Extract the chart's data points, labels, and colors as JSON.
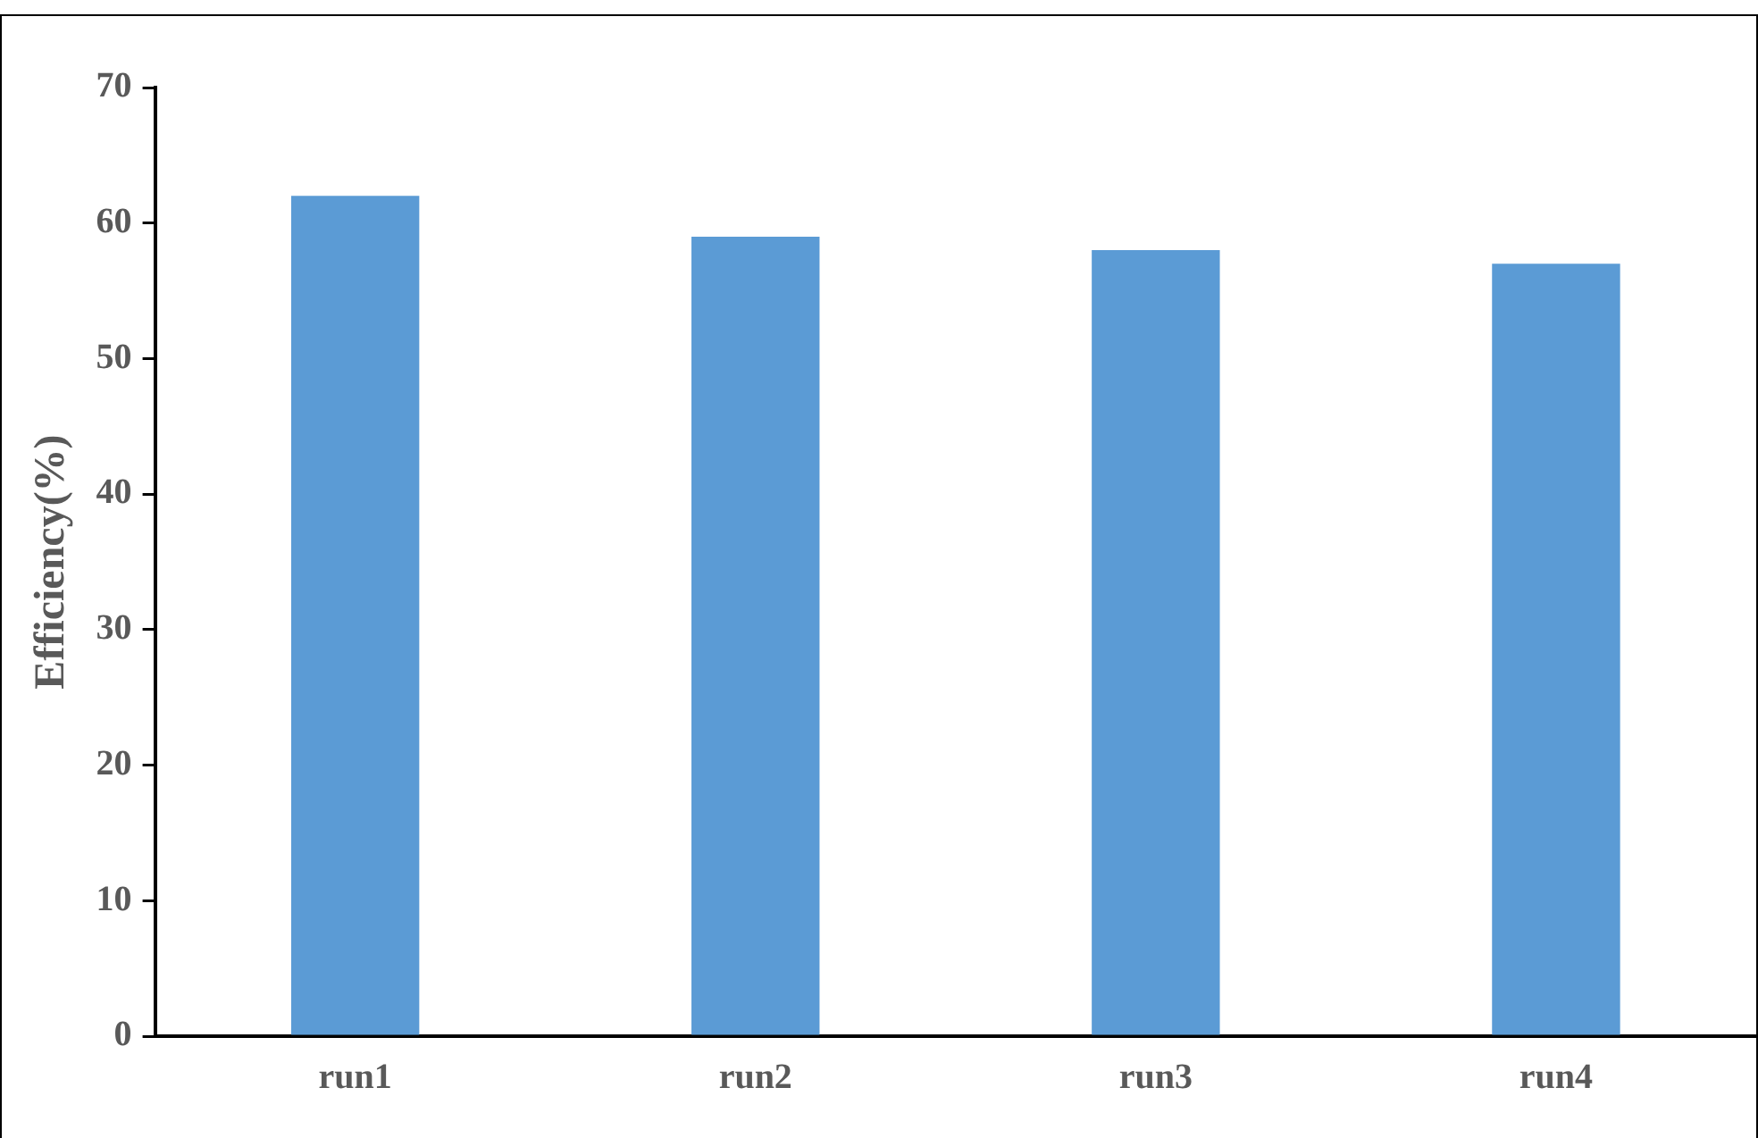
{
  "chart_data": {
    "type": "bar",
    "ylabel": "Efficiency(%)",
    "categories": [
      "run1",
      "run2",
      "run3",
      "run4"
    ],
    "values": [
      62,
      59,
      58,
      57
    ],
    "color": "#5b9bd5",
    "ylim": [
      0,
      70
    ],
    "yticks": [
      0,
      10,
      20,
      30,
      40,
      50,
      60,
      70
    ],
    "grid": false,
    "legend": false
  }
}
